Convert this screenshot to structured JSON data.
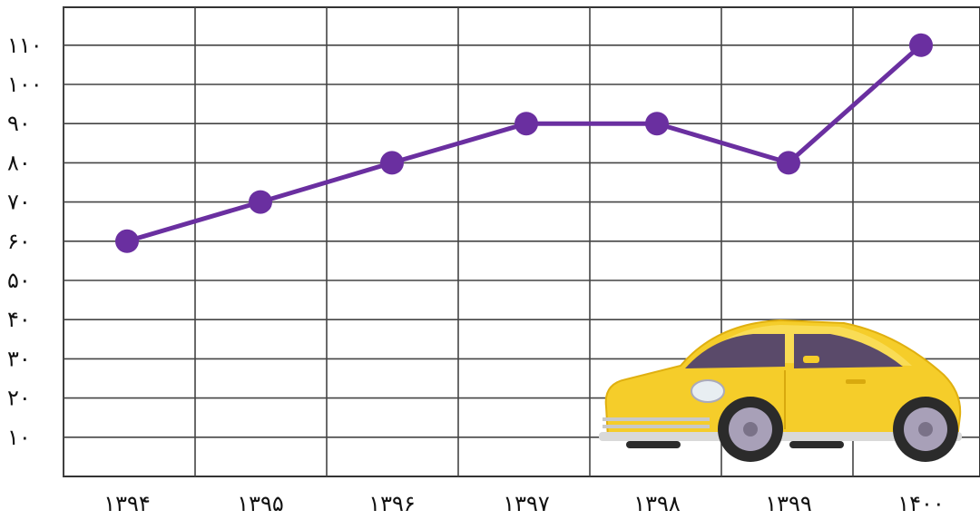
{
  "chart_data": {
    "type": "line",
    "title": "",
    "xlabel": "",
    "ylabel": "",
    "categories": [
      "۱۳۹۴",
      "۱۳۹۵",
      "۱۳۹۶",
      "۱۳۹۷",
      "۱۳۹۸",
      "۱۳۹۹",
      "۱۴۰۰"
    ],
    "series": [
      {
        "values": [
          60,
          70,
          80,
          90,
          90,
          80,
          110
        ],
        "color": "#6a2fa0"
      }
    ],
    "y_ticks": [
      {
        "value": 10,
        "label": "۱۰"
      },
      {
        "value": 20,
        "label": "۲۰"
      },
      {
        "value": 30,
        "label": "۳۰"
      },
      {
        "value": 40,
        "label": "۴۰"
      },
      {
        "value": 50,
        "label": "۵۰"
      },
      {
        "value": 60,
        "label": "۶۰"
      },
      {
        "value": 70,
        "label": "۷۰"
      },
      {
        "value": 80,
        "label": "۸۰"
      },
      {
        "value": 90,
        "label": "۹۰"
      },
      {
        "value": 100,
        "label": "۱۰۰"
      },
      {
        "value": 110,
        "label": "۱۱۰"
      }
    ],
    "ylim": [
      0,
      120
    ],
    "grid": true,
    "decoration": {
      "icon": "yellow-car-icon",
      "body_color": "#f5cd2a",
      "window_color": "#5a4a6a"
    }
  }
}
